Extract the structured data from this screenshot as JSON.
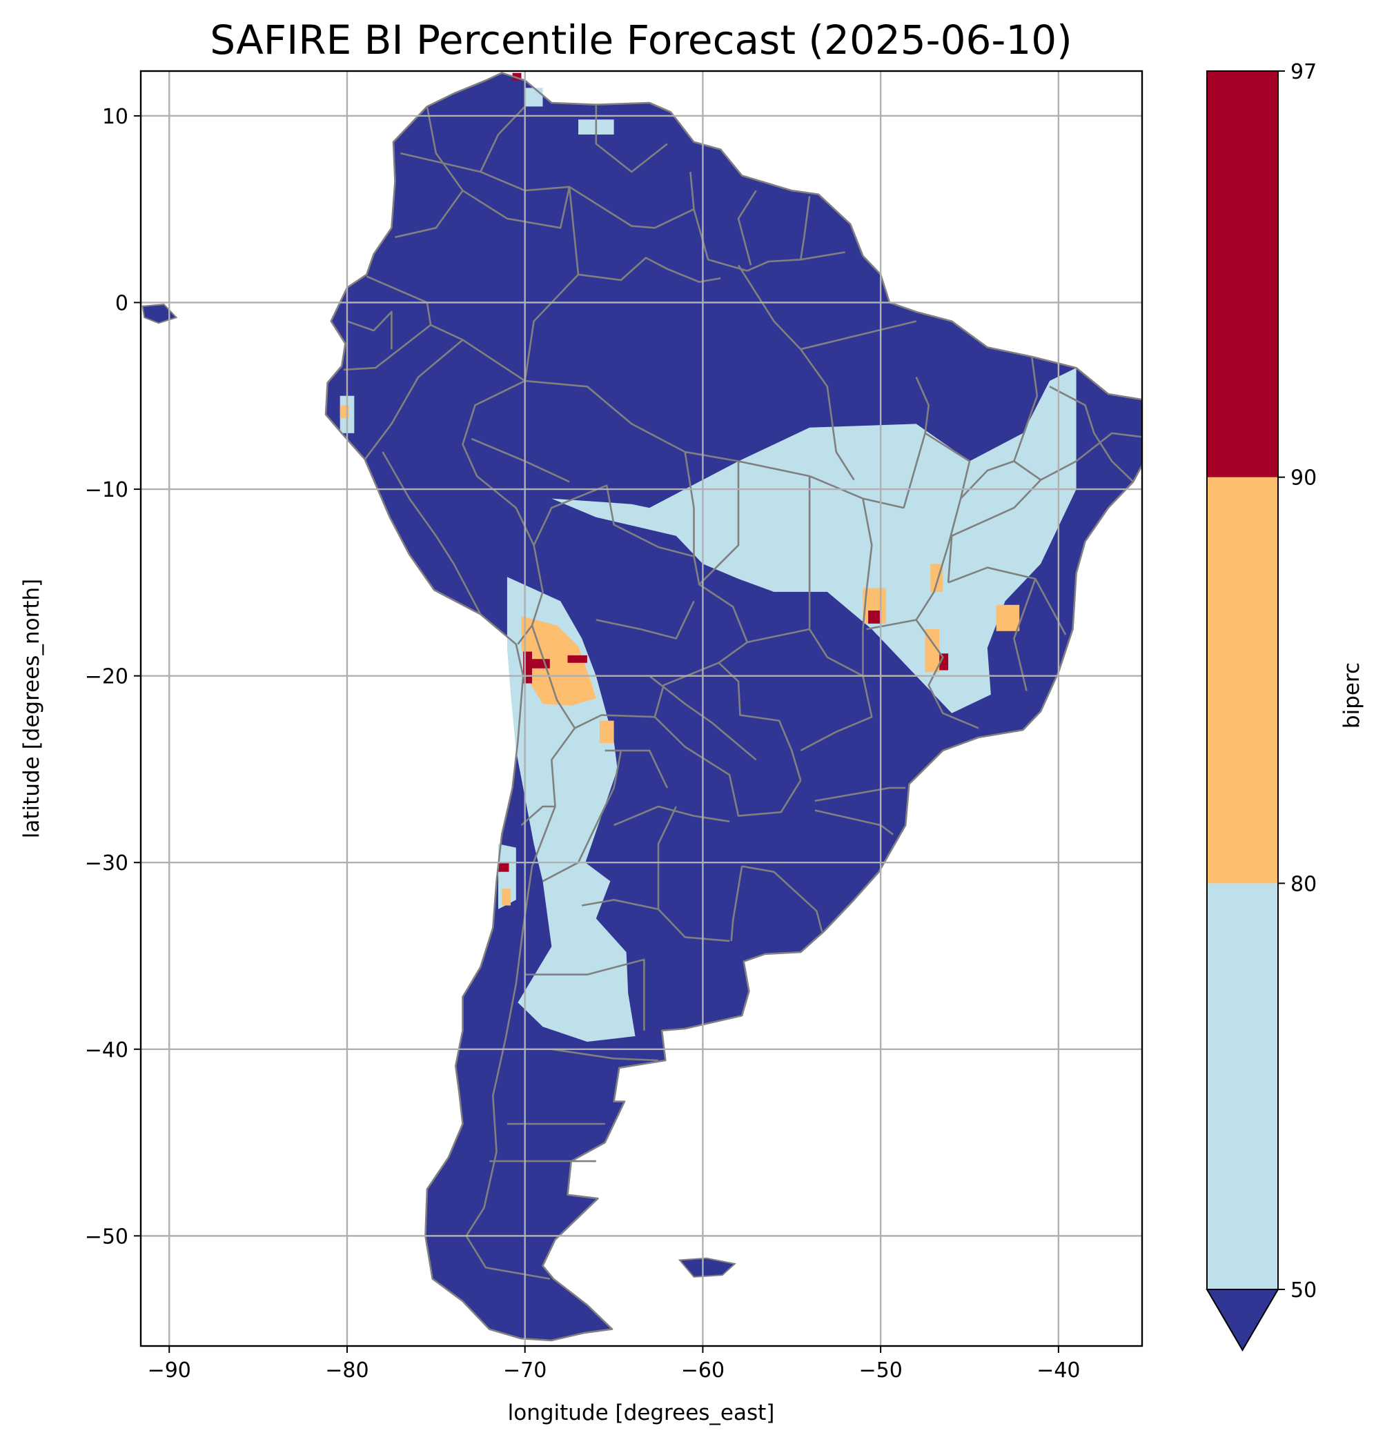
{
  "chart_data": {
    "type": "heatmap",
    "title": "SAFIRE BI Percentile Forecast (2025-06-10)",
    "xlabel": "longitude [degrees_east]",
    "ylabel": "latitude [degrees_north]",
    "xlim": [
      -91.6,
      -35.3
    ],
    "ylim": [
      -55.9,
      12.4
    ],
    "x_ticks": [
      -90,
      -80,
      -70,
      -60,
      -50,
      -40
    ],
    "y_ticks": [
      10,
      0,
      -10,
      -20,
      -30,
      -40,
      -50
    ],
    "x_tick_labels": [
      "−90",
      "−80",
      "−70",
      "−60",
      "−50",
      "−40"
    ],
    "y_tick_labels": [
      "10",
      "0",
      "−10",
      "−20",
      "−30",
      "−40",
      "−50"
    ],
    "grid": true,
    "background_class_color": "#313695",
    "classes": [
      {
        "range": [
          -999,
          50
        ],
        "color": "#313695"
      },
      {
        "range": [
          50,
          80
        ],
        "color": "#bde0eb"
      },
      {
        "range": [
          80,
          90
        ],
        "color": "#fdbe70"
      },
      {
        "range": [
          90,
          97
        ],
        "color": "#a50026"
      }
    ],
    "colorbar": {
      "label": "biperc",
      "ticks": [
        50,
        80,
        90,
        97
      ],
      "tick_labels": [
        "50",
        "80",
        "90",
        "97"
      ],
      "extend": "min"
    },
    "regions": [
      {
        "class": "50-80",
        "lonlat": [
          [
            -63,
            -11
          ],
          [
            -58,
            -8.5
          ],
          [
            -54,
            -6.7
          ],
          [
            -48,
            -6.5
          ],
          [
            -45,
            -8.5
          ],
          [
            -42,
            -7
          ],
          [
            -40.5,
            -4.2
          ],
          [
            -39,
            -3.5
          ],
          [
            -39,
            -10
          ],
          [
            -41,
            -14
          ],
          [
            -43,
            -16
          ],
          [
            -44,
            -18.5
          ],
          [
            -43.8,
            -21
          ],
          [
            -46,
            -22
          ],
          [
            -48,
            -20
          ],
          [
            -50.5,
            -17.5
          ],
          [
            -53,
            -15.5
          ],
          [
            -56,
            -15.5
          ],
          [
            -58,
            -14.8
          ],
          [
            -60,
            -14
          ],
          [
            -61.5,
            -12.5
          ],
          [
            -66,
            -11.5
          ],
          [
            -68.5,
            -10.5
          ],
          [
            -64,
            -10.8
          ]
        ]
      },
      {
        "class": "50-80",
        "lonlat": [
          [
            -71,
            -14.7
          ],
          [
            -68,
            -16
          ],
          [
            -66.8,
            -18
          ],
          [
            -66,
            -20
          ],
          [
            -65,
            -23.5
          ],
          [
            -64.8,
            -25
          ],
          [
            -65.7,
            -27.5
          ],
          [
            -66.6,
            -30
          ],
          [
            -65.2,
            -31
          ],
          [
            -66,
            -33
          ],
          [
            -64.3,
            -34.8
          ],
          [
            -64.2,
            -37
          ],
          [
            -63.8,
            -39.3
          ],
          [
            -66.5,
            -39.6
          ],
          [
            -69,
            -38.8
          ],
          [
            -70.4,
            -37.5
          ],
          [
            -68.5,
            -34.5
          ],
          [
            -69,
            -31
          ],
          [
            -69.5,
            -29
          ],
          [
            -70,
            -26.5
          ],
          [
            -70.5,
            -24
          ],
          [
            -70.8,
            -21
          ],
          [
            -71,
            -18.5
          ]
        ]
      },
      {
        "class": "50-80",
        "lonlat": [
          [
            -71.5,
            -29
          ],
          [
            -70.5,
            -29.2
          ],
          [
            -70.5,
            -32
          ],
          [
            -71.5,
            -32.5
          ]
        ]
      },
      {
        "class": "50-80",
        "lonlat": [
          [
            -80.4,
            -5
          ],
          [
            -79.6,
            -5
          ],
          [
            -79.6,
            -7
          ],
          [
            -80.4,
            -7
          ]
        ]
      },
      {
        "class": "50-80",
        "lonlat": [
          [
            -67,
            9.8
          ],
          [
            -65,
            9.8
          ],
          [
            -65,
            9
          ],
          [
            -67,
            9
          ]
        ]
      },
      {
        "class": "50-80",
        "lonlat": [
          [
            -70,
            11.5
          ],
          [
            -69,
            11.5
          ],
          [
            -69,
            10.5
          ],
          [
            -70,
            10.5
          ]
        ]
      },
      {
        "class": "80-90",
        "lonlat": [
          [
            -70.2,
            -16.8
          ],
          [
            -68.2,
            -17.3
          ],
          [
            -67,
            -18.4
          ],
          [
            -66.4,
            -20
          ],
          [
            -66,
            -21.2
          ],
          [
            -67.4,
            -21.6
          ],
          [
            -69,
            -21.5
          ],
          [
            -69.7,
            -20.4
          ],
          [
            -70.2,
            -18.5
          ]
        ]
      },
      {
        "class": "80-90",
        "lonlat": [
          [
            -65.8,
            -22.4
          ],
          [
            -65,
            -22.4
          ],
          [
            -65,
            -23.6
          ],
          [
            -65.8,
            -23.6
          ]
        ]
      },
      {
        "class": "80-90",
        "lonlat": [
          [
            -51,
            -15.3
          ],
          [
            -49.7,
            -15.3
          ],
          [
            -49.7,
            -17.2
          ],
          [
            -51,
            -17.2
          ]
        ]
      },
      {
        "class": "80-90",
        "lonlat": [
          [
            -47.2,
            -14
          ],
          [
            -46.5,
            -14
          ],
          [
            -46.5,
            -15.5
          ],
          [
            -47.2,
            -15.5
          ]
        ]
      },
      {
        "class": "80-90",
        "lonlat": [
          [
            -47.5,
            -17.5
          ],
          [
            -46.7,
            -17.5
          ],
          [
            -46.7,
            -19.8
          ],
          [
            -47.5,
            -19.8
          ]
        ]
      },
      {
        "class": "80-90",
        "lonlat": [
          [
            -43.5,
            -16.2
          ],
          [
            -42.2,
            -16.2
          ],
          [
            -42.2,
            -17.6
          ],
          [
            -43.5,
            -17.6
          ]
        ]
      },
      {
        "class": "80-90",
        "lonlat": [
          [
            -80.4,
            -5.5
          ],
          [
            -79.9,
            -5.5
          ],
          [
            -79.9,
            -6.2
          ],
          [
            -80.4,
            -6.2
          ]
        ]
      },
      {
        "class": "80-90",
        "lonlat": [
          [
            -71.3,
            -31.4
          ],
          [
            -70.8,
            -31.4
          ],
          [
            -70.8,
            -32.3
          ],
          [
            -71.3,
            -32.3
          ]
        ]
      },
      {
        "class": "90-97",
        "lonlat": [
          [
            -69.8,
            -19.1
          ],
          [
            -68.6,
            -19.1
          ],
          [
            -68.6,
            -19.6
          ],
          [
            -69.8,
            -19.6
          ]
        ]
      },
      {
        "class": "90-97",
        "lonlat": [
          [
            -70.1,
            -18.7
          ],
          [
            -69.6,
            -18.7
          ],
          [
            -69.6,
            -20.4
          ],
          [
            -70.1,
            -20.4
          ]
        ]
      },
      {
        "class": "90-97",
        "lonlat": [
          [
            -67.6,
            -18.9
          ],
          [
            -66.5,
            -18.9
          ],
          [
            -66.5,
            -19.3
          ],
          [
            -67.6,
            -19.3
          ]
        ]
      },
      {
        "class": "90-97",
        "lonlat": [
          [
            -50.7,
            -16.5
          ],
          [
            -50,
            -16.5
          ],
          [
            -50,
            -17.2
          ],
          [
            -50.7,
            -17.2
          ]
        ]
      },
      {
        "class": "90-97",
        "lonlat": [
          [
            -46.7,
            -18.8
          ],
          [
            -46.2,
            -18.8
          ],
          [
            -46.2,
            -19.7
          ],
          [
            -46.7,
            -19.7
          ]
        ]
      },
      {
        "class": "90-97",
        "lonlat": [
          [
            -70.7,
            12.3
          ],
          [
            -70.2,
            12.3
          ],
          [
            -70.2,
            11.9
          ],
          [
            -70.7,
            11.9
          ]
        ]
      },
      {
        "class": "90-97",
        "lonlat": [
          [
            -71.5,
            -30
          ],
          [
            -70.9,
            -30
          ],
          [
            -70.9,
            -30.5
          ],
          [
            -71.5,
            -30.5
          ]
        ]
      }
    ]
  }
}
